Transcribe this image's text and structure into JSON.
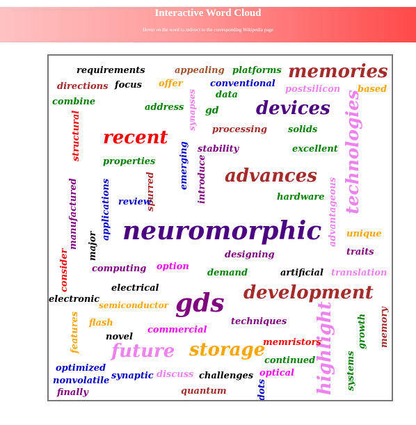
{
  "header": {
    "title": "Interactive Word Cloud",
    "subtitle": "Hover on the word to redirect to the corresponding Wikipedia page",
    "gradient_colors": [
      "#ffc2c2",
      "#ff4a4a"
    ]
  },
  "cloud": {
    "words": [
      {
        "text": "requirements",
        "color": "#000000"
      },
      {
        "text": "appealing",
        "color": "#a0522d"
      },
      {
        "text": "platforms",
        "color": "#008000"
      },
      {
        "text": "memories",
        "color": "#a52a2a"
      },
      {
        "text": "directions",
        "color": "#a52a2a"
      },
      {
        "text": "focus",
        "color": "#000000"
      },
      {
        "text": "offer",
        "color": "#ffa500"
      },
      {
        "text": "conventional",
        "color": "#0000cd"
      },
      {
        "text": "postsilicon",
        "color": "#ee82ee"
      },
      {
        "text": "based",
        "color": "#ffa500"
      },
      {
        "text": "data",
        "color": "#008000"
      },
      {
        "text": "synapses",
        "color": "#ee82ee"
      },
      {
        "text": "combine",
        "color": "#008000"
      },
      {
        "text": "address",
        "color": "#008000"
      },
      {
        "text": "gd",
        "color": "#008000"
      },
      {
        "text": "devices",
        "color": "#4b0082"
      },
      {
        "text": "technologies",
        "color": "#ee82ee"
      },
      {
        "text": "structural",
        "color": "#ff0000"
      },
      {
        "text": "processing",
        "color": "#a52a2a"
      },
      {
        "text": "solids",
        "color": "#008000"
      },
      {
        "text": "recent",
        "color": "#ff0000"
      },
      {
        "text": "stability",
        "color": "#800080"
      },
      {
        "text": "excellent",
        "color": "#008000"
      },
      {
        "text": "emerging",
        "color": "#0000cd"
      },
      {
        "text": "introduce",
        "color": "#800080"
      },
      {
        "text": "properties",
        "color": "#008000"
      },
      {
        "text": "advances",
        "color": "#a52a2a"
      },
      {
        "text": "applications",
        "color": "#0000cd"
      },
      {
        "text": "spurred",
        "color": "#a52a2a"
      },
      {
        "text": "manufactured",
        "color": "#800080"
      },
      {
        "text": "review",
        "color": "#0000cd"
      },
      {
        "text": "hardware",
        "color": "#008000"
      },
      {
        "text": "advantageous",
        "color": "#ee82ee"
      },
      {
        "text": "neuromorphic",
        "color": "#4b0082"
      },
      {
        "text": "unique",
        "color": "#ffa500"
      },
      {
        "text": "major",
        "color": "#000000"
      },
      {
        "text": "designing",
        "color": "#800080"
      },
      {
        "text": "traits",
        "color": "#800080"
      },
      {
        "text": "consider",
        "color": "#ff0000"
      },
      {
        "text": "computing",
        "color": "#800080"
      },
      {
        "text": "option",
        "color": "#ff00ff"
      },
      {
        "text": "demand",
        "color": "#008000"
      },
      {
        "text": "artificial",
        "color": "#000000"
      },
      {
        "text": "translation",
        "color": "#ee82ee"
      },
      {
        "text": "electrical",
        "color": "#000000"
      },
      {
        "text": "development",
        "color": "#a52a2a"
      },
      {
        "text": "electronic",
        "color": "#000000"
      },
      {
        "text": "semiconductor",
        "color": "#ffa500"
      },
      {
        "text": "gds",
        "color": "#800080"
      },
      {
        "text": "features",
        "color": "#ffa500"
      },
      {
        "text": "flash",
        "color": "#ffa500"
      },
      {
        "text": "commercial",
        "color": "#ff00ff"
      },
      {
        "text": "techniques",
        "color": "#800080"
      },
      {
        "text": "highlight",
        "color": "#ee82ee"
      },
      {
        "text": "growth",
        "color": "#008000"
      },
      {
        "text": "memory",
        "color": "#a52a2a"
      },
      {
        "text": "novel",
        "color": "#000000"
      },
      {
        "text": "future",
        "color": "#ee82ee"
      },
      {
        "text": "storage",
        "color": "#ffa500"
      },
      {
        "text": "memristors",
        "color": "#ff0000"
      },
      {
        "text": "continued",
        "color": "#008000"
      },
      {
        "text": "systems",
        "color": "#008000"
      },
      {
        "text": "optimized",
        "color": "#0000cd"
      },
      {
        "text": "synaptic",
        "color": "#0000cd"
      },
      {
        "text": "discuss",
        "color": "#ee82ee"
      },
      {
        "text": "challenges",
        "color": "#000000"
      },
      {
        "text": "optical",
        "color": "#ff00ff"
      },
      {
        "text": "nonvolatile",
        "color": "#0000cd"
      },
      {
        "text": "dots",
        "color": "#0000cd"
      },
      {
        "text": "finally",
        "color": "#800080"
      },
      {
        "text": "quantum",
        "color": "#a52a2a"
      }
    ]
  }
}
